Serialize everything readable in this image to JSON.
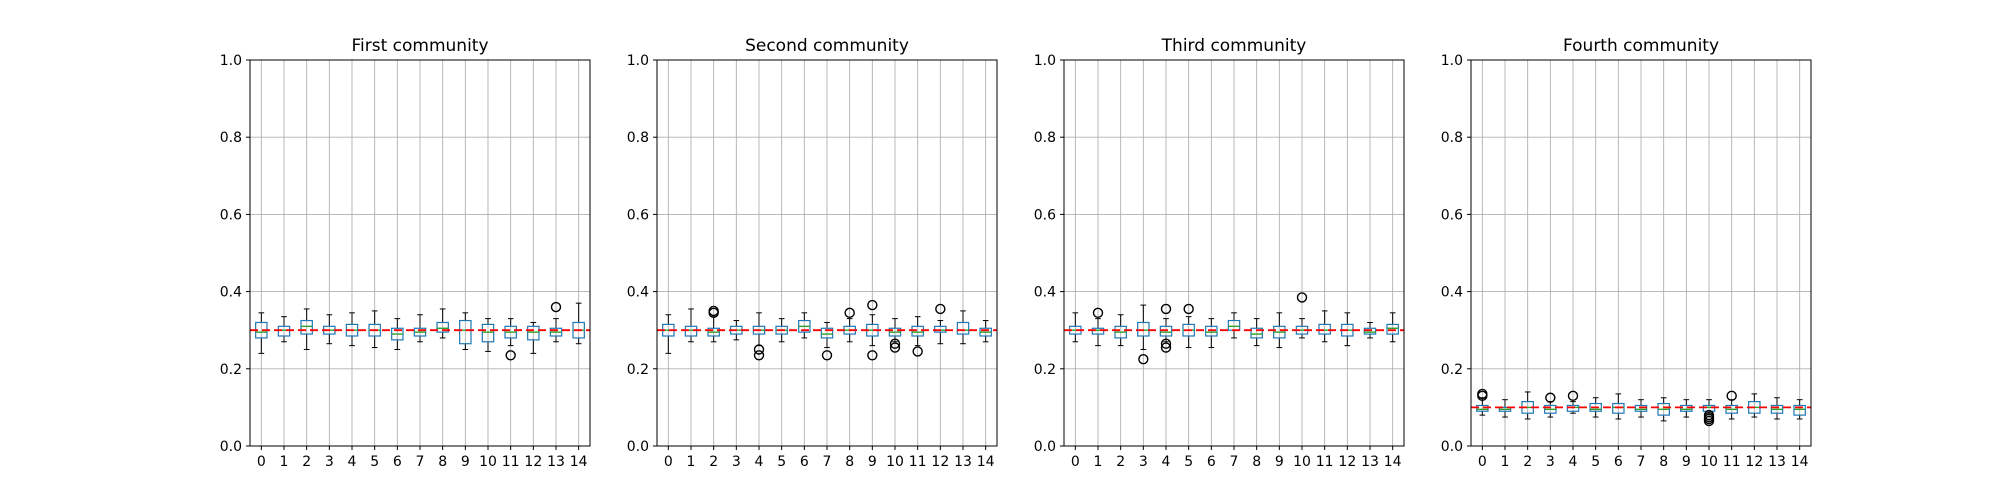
{
  "chart_data": [
    {
      "type": "box",
      "title": "First community",
      "ylim": [
        0,
        1.0
      ],
      "yticks": [
        "0.0",
        "0.2",
        "0.4",
        "0.6",
        "0.8",
        "1.0"
      ],
      "categories": [
        "0",
        "1",
        "2",
        "3",
        "4",
        "5",
        "6",
        "7",
        "8",
        "9",
        "10",
        "11",
        "12",
        "13",
        "14"
      ],
      "reference_line": 0.3,
      "grid": true,
      "boxes": [
        {
          "min": 0.24,
          "q1": 0.28,
          "median": 0.295,
          "q3": 0.32,
          "max": 0.345,
          "fliers": []
        },
        {
          "min": 0.27,
          "q1": 0.285,
          "median": 0.3,
          "q3": 0.31,
          "max": 0.335,
          "fliers": []
        },
        {
          "min": 0.25,
          "q1": 0.29,
          "median": 0.31,
          "q3": 0.325,
          "max": 0.355,
          "fliers": []
        },
        {
          "min": 0.265,
          "q1": 0.29,
          "median": 0.3,
          "q3": 0.31,
          "max": 0.34,
          "fliers": []
        },
        {
          "min": 0.26,
          "q1": 0.285,
          "median": 0.3,
          "q3": 0.315,
          "max": 0.345,
          "fliers": []
        },
        {
          "min": 0.255,
          "q1": 0.285,
          "median": 0.3,
          "q3": 0.315,
          "max": 0.35,
          "fliers": []
        },
        {
          "min": 0.25,
          "q1": 0.275,
          "median": 0.29,
          "q3": 0.305,
          "max": 0.33,
          "fliers": []
        },
        {
          "min": 0.27,
          "q1": 0.285,
          "median": 0.295,
          "q3": 0.305,
          "max": 0.34,
          "fliers": []
        },
        {
          "min": 0.28,
          "q1": 0.295,
          "median": 0.305,
          "q3": 0.32,
          "max": 0.355,
          "fliers": []
        },
        {
          "min": 0.25,
          "q1": 0.265,
          "median": 0.3,
          "q3": 0.325,
          "max": 0.345,
          "fliers": []
        },
        {
          "min": 0.245,
          "q1": 0.27,
          "median": 0.295,
          "q3": 0.315,
          "max": 0.33,
          "fliers": []
        },
        {
          "min": 0.26,
          "q1": 0.28,
          "median": 0.295,
          "q3": 0.31,
          "max": 0.33,
          "fliers": [
            0.235
          ]
        },
        {
          "min": 0.24,
          "q1": 0.275,
          "median": 0.295,
          "q3": 0.31,
          "max": 0.32,
          "fliers": []
        },
        {
          "min": 0.27,
          "q1": 0.285,
          "median": 0.295,
          "q3": 0.305,
          "max": 0.33,
          "fliers": [
            0.36
          ]
        },
        {
          "min": 0.265,
          "q1": 0.28,
          "median": 0.3,
          "q3": 0.32,
          "max": 0.37,
          "fliers": []
        }
      ]
    },
    {
      "type": "box",
      "title": "Second community",
      "ylim": [
        0,
        1.0
      ],
      "yticks": [
        "0.0",
        "0.2",
        "0.4",
        "0.6",
        "0.8",
        "1.0"
      ],
      "categories": [
        "0",
        "1",
        "2",
        "3",
        "4",
        "5",
        "6",
        "7",
        "8",
        "9",
        "10",
        "11",
        "12",
        "13",
        "14"
      ],
      "reference_line": 0.3,
      "grid": true,
      "boxes": [
        {
          "min": 0.24,
          "q1": 0.285,
          "median": 0.3,
          "q3": 0.315,
          "max": 0.34,
          "fliers": []
        },
        {
          "min": 0.27,
          "q1": 0.285,
          "median": 0.3,
          "q3": 0.31,
          "max": 0.355,
          "fliers": []
        },
        {
          "min": 0.27,
          "q1": 0.285,
          "median": 0.295,
          "q3": 0.305,
          "max": 0.335,
          "fliers": [
            0.345,
            0.35
          ]
        },
        {
          "min": 0.275,
          "q1": 0.29,
          "median": 0.3,
          "q3": 0.31,
          "max": 0.325,
          "fliers": []
        },
        {
          "min": 0.26,
          "q1": 0.29,
          "median": 0.3,
          "q3": 0.31,
          "max": 0.345,
          "fliers": [
            0.235,
            0.25
          ]
        },
        {
          "min": 0.27,
          "q1": 0.29,
          "median": 0.3,
          "q3": 0.31,
          "max": 0.33,
          "fliers": []
        },
        {
          "min": 0.28,
          "q1": 0.295,
          "median": 0.31,
          "q3": 0.325,
          "max": 0.345,
          "fliers": []
        },
        {
          "min": 0.255,
          "q1": 0.28,
          "median": 0.29,
          "q3": 0.305,
          "max": 0.32,
          "fliers": [
            0.235
          ]
        },
        {
          "min": 0.27,
          "q1": 0.29,
          "median": 0.3,
          "q3": 0.31,
          "max": 0.33,
          "fliers": [
            0.345
          ]
        },
        {
          "min": 0.26,
          "q1": 0.285,
          "median": 0.3,
          "q3": 0.315,
          "max": 0.34,
          "fliers": [
            0.235,
            0.365
          ]
        },
        {
          "min": 0.27,
          "q1": 0.285,
          "median": 0.295,
          "q3": 0.305,
          "max": 0.33,
          "fliers": [
            0.255,
            0.265
          ]
        },
        {
          "min": 0.26,
          "q1": 0.285,
          "median": 0.295,
          "q3": 0.31,
          "max": 0.335,
          "fliers": [
            0.245
          ]
        },
        {
          "min": 0.265,
          "q1": 0.295,
          "median": 0.3,
          "q3": 0.31,
          "max": 0.325,
          "fliers": [
            0.355
          ]
        },
        {
          "min": 0.265,
          "q1": 0.29,
          "median": 0.3,
          "q3": 0.32,
          "max": 0.35,
          "fliers": []
        },
        {
          "min": 0.27,
          "q1": 0.285,
          "median": 0.295,
          "q3": 0.305,
          "max": 0.325,
          "fliers": []
        }
      ]
    },
    {
      "type": "box",
      "title": "Third community",
      "ylim": [
        0,
        1.0
      ],
      "yticks": [
        "0.0",
        "0.2",
        "0.4",
        "0.6",
        "0.8",
        "1.0"
      ],
      "categories": [
        "0",
        "1",
        "2",
        "3",
        "4",
        "5",
        "6",
        "7",
        "8",
        "9",
        "10",
        "11",
        "12",
        "13",
        "14"
      ],
      "reference_line": 0.3,
      "grid": true,
      "boxes": [
        {
          "min": 0.27,
          "q1": 0.29,
          "median": 0.3,
          "q3": 0.31,
          "max": 0.345,
          "fliers": []
        },
        {
          "min": 0.26,
          "q1": 0.29,
          "median": 0.3,
          "q3": 0.305,
          "max": 0.33,
          "fliers": [
            0.345
          ]
        },
        {
          "min": 0.26,
          "q1": 0.28,
          "median": 0.295,
          "q3": 0.31,
          "max": 0.34,
          "fliers": []
        },
        {
          "min": 0.25,
          "q1": 0.285,
          "median": 0.3,
          "q3": 0.32,
          "max": 0.365,
          "fliers": [
            0.225
          ]
        },
        {
          "min": 0.27,
          "q1": 0.285,
          "median": 0.295,
          "q3": 0.31,
          "max": 0.33,
          "fliers": [
            0.255,
            0.265,
            0.355
          ]
        },
        {
          "min": 0.255,
          "q1": 0.285,
          "median": 0.3,
          "q3": 0.315,
          "max": 0.335,
          "fliers": [
            0.355
          ]
        },
        {
          "min": 0.255,
          "q1": 0.285,
          "median": 0.295,
          "q3": 0.31,
          "max": 0.33,
          "fliers": []
        },
        {
          "min": 0.28,
          "q1": 0.3,
          "median": 0.31,
          "q3": 0.325,
          "max": 0.345,
          "fliers": []
        },
        {
          "min": 0.26,
          "q1": 0.28,
          "median": 0.29,
          "q3": 0.305,
          "max": 0.33,
          "fliers": []
        },
        {
          "min": 0.255,
          "q1": 0.28,
          "median": 0.295,
          "q3": 0.31,
          "max": 0.345,
          "fliers": []
        },
        {
          "min": 0.28,
          "q1": 0.29,
          "median": 0.3,
          "q3": 0.31,
          "max": 0.33,
          "fliers": [
            0.385
          ]
        },
        {
          "min": 0.27,
          "q1": 0.29,
          "median": 0.3,
          "q3": 0.315,
          "max": 0.35,
          "fliers": []
        },
        {
          "min": 0.26,
          "q1": 0.285,
          "median": 0.3,
          "q3": 0.315,
          "max": 0.345,
          "fliers": []
        },
        {
          "min": 0.28,
          "q1": 0.29,
          "median": 0.295,
          "q3": 0.305,
          "max": 0.32,
          "fliers": []
        },
        {
          "min": 0.27,
          "q1": 0.29,
          "median": 0.305,
          "q3": 0.315,
          "max": 0.345,
          "fliers": []
        }
      ]
    },
    {
      "type": "box",
      "title": "Fourth community",
      "ylim": [
        0,
        1.0
      ],
      "yticks": [
        "0.0",
        "0.2",
        "0.4",
        "0.6",
        "0.8",
        "1.0"
      ],
      "categories": [
        "0",
        "1",
        "2",
        "3",
        "4",
        "5",
        "6",
        "7",
        "8",
        "9",
        "10",
        "11",
        "12",
        "13",
        "14"
      ],
      "reference_line": 0.1,
      "grid": true,
      "boxes": [
        {
          "min": 0.08,
          "q1": 0.09,
          "median": 0.095,
          "q3": 0.105,
          "max": 0.125,
          "fliers": [
            0.13,
            0.135
          ]
        },
        {
          "min": 0.075,
          "q1": 0.09,
          "median": 0.095,
          "q3": 0.1,
          "max": 0.12,
          "fliers": []
        },
        {
          "min": 0.07,
          "q1": 0.085,
          "median": 0.1,
          "q3": 0.115,
          "max": 0.14,
          "fliers": []
        },
        {
          "min": 0.075,
          "q1": 0.085,
          "median": 0.095,
          "q3": 0.105,
          "max": 0.115,
          "fliers": [
            0.125
          ]
        },
        {
          "min": 0.085,
          "q1": 0.09,
          "median": 0.1,
          "q3": 0.105,
          "max": 0.115,
          "fliers": [
            0.13
          ]
        },
        {
          "min": 0.075,
          "q1": 0.09,
          "median": 0.095,
          "q3": 0.11,
          "max": 0.125,
          "fliers": []
        },
        {
          "min": 0.07,
          "q1": 0.085,
          "median": 0.1,
          "q3": 0.11,
          "max": 0.135,
          "fliers": []
        },
        {
          "min": 0.075,
          "q1": 0.09,
          "median": 0.095,
          "q3": 0.105,
          "max": 0.12,
          "fliers": []
        },
        {
          "min": 0.065,
          "q1": 0.08,
          "median": 0.095,
          "q3": 0.11,
          "max": 0.125,
          "fliers": []
        },
        {
          "min": 0.075,
          "q1": 0.09,
          "median": 0.095,
          "q3": 0.105,
          "max": 0.12,
          "fliers": []
        },
        {
          "min": 0.085,
          "q1": 0.09,
          "median": 0.1,
          "q3": 0.105,
          "max": 0.12,
          "fliers": [
            0.065,
            0.07,
            0.075,
            0.08
          ]
        },
        {
          "min": 0.07,
          "q1": 0.085,
          "median": 0.095,
          "q3": 0.105,
          "max": 0.12,
          "fliers": [
            0.13
          ]
        },
        {
          "min": 0.075,
          "q1": 0.085,
          "median": 0.1,
          "q3": 0.115,
          "max": 0.135,
          "fliers": []
        },
        {
          "min": 0.07,
          "q1": 0.085,
          "median": 0.095,
          "q3": 0.105,
          "max": 0.125,
          "fliers": []
        },
        {
          "min": 0.07,
          "q1": 0.08,
          "median": 0.095,
          "q3": 0.105,
          "max": 0.12,
          "fliers": []
        }
      ]
    }
  ]
}
